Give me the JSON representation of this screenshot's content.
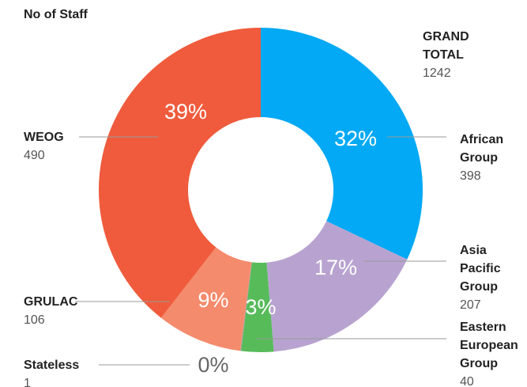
{
  "chart_data": {
    "type": "donut",
    "title": "No of Staff",
    "total_label": "GRAND TOTAL",
    "total": 1242,
    "categories": [
      "African Group",
      "Asia Pacific Group",
      "Eastern European Group",
      "Stateless",
      "GRULAC",
      "WEOG"
    ],
    "values": [
      398,
      207,
      40,
      1,
      106,
      490
    ],
    "shares": [
      32,
      17,
      3,
      0,
      9,
      39
    ],
    "share_labels": [
      "32%",
      "17%",
      "3%",
      "0%",
      "9%",
      "39%"
    ],
    "colors": [
      "#03a9f4",
      "#b8a3d0",
      "#57bb5a",
      "#9e9e9e",
      "#f48b6c",
      "#ef5b3c"
    ]
  }
}
